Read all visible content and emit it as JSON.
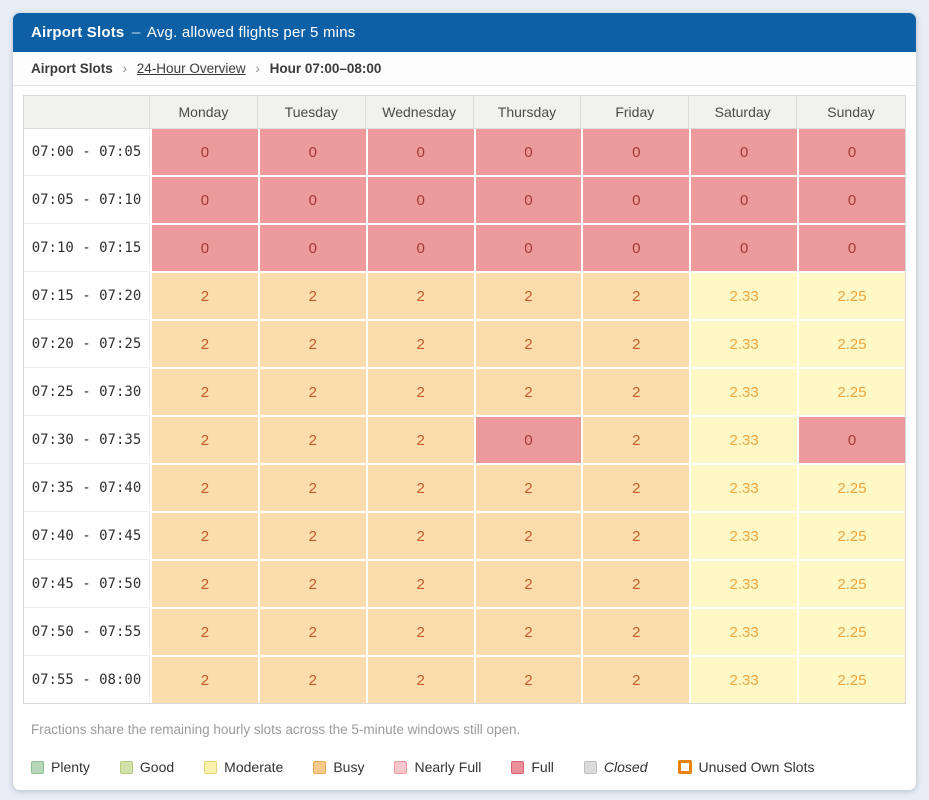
{
  "colors": {
    "header_bar": "#0d5fa6",
    "page_bg": "#e9eef6"
  },
  "title": {
    "product": "Airport Slots",
    "separator": "–",
    "subtitle": "Avg. allowed flights per 5 mins"
  },
  "breadcrumb": {
    "separator": "›",
    "items": [
      {
        "label": "Airport Slots",
        "link": false
      },
      {
        "label": "24-Hour Overview",
        "link": true
      },
      {
        "label": "Hour 07:00–08:00",
        "link": false
      }
    ]
  },
  "palette": {
    "full": {
      "bg": "#ec9a9b",
      "text": "#a33a36"
    },
    "busy": {
      "bg": "#fbdcac",
      "text": "#c75b2e"
    },
    "moderate": {
      "bg": "#fdf8c6",
      "text": "#eea63f"
    }
  },
  "table": {
    "corner_label": "",
    "day_headers": [
      "Monday",
      "Tuesday",
      "Wednesday",
      "Thursday",
      "Friday",
      "Saturday",
      "Sunday"
    ],
    "rows": [
      {
        "time": "07:00 - 07:05",
        "cells": [
          {
            "value": "0",
            "level": "full"
          },
          {
            "value": "0",
            "level": "full"
          },
          {
            "value": "0",
            "level": "full"
          },
          {
            "value": "0",
            "level": "full"
          },
          {
            "value": "0",
            "level": "full"
          },
          {
            "value": "0",
            "level": "full"
          },
          {
            "value": "0",
            "level": "full"
          }
        ]
      },
      {
        "time": "07:05 - 07:10",
        "cells": [
          {
            "value": "0",
            "level": "full"
          },
          {
            "value": "0",
            "level": "full"
          },
          {
            "value": "0",
            "level": "full"
          },
          {
            "value": "0",
            "level": "full"
          },
          {
            "value": "0",
            "level": "full"
          },
          {
            "value": "0",
            "level": "full"
          },
          {
            "value": "0",
            "level": "full"
          }
        ]
      },
      {
        "time": "07:10 - 07:15",
        "cells": [
          {
            "value": "0",
            "level": "full"
          },
          {
            "value": "0",
            "level": "full"
          },
          {
            "value": "0",
            "level": "full"
          },
          {
            "value": "0",
            "level": "full"
          },
          {
            "value": "0",
            "level": "full"
          },
          {
            "value": "0",
            "level": "full"
          },
          {
            "value": "0",
            "level": "full"
          }
        ]
      },
      {
        "time": "07:15 - 07:20",
        "cells": [
          {
            "value": "2",
            "level": "busy"
          },
          {
            "value": "2",
            "level": "busy"
          },
          {
            "value": "2",
            "level": "busy"
          },
          {
            "value": "2",
            "level": "busy"
          },
          {
            "value": "2",
            "level": "busy"
          },
          {
            "value": "2.33",
            "level": "moderate"
          },
          {
            "value": "2.25",
            "level": "moderate"
          }
        ]
      },
      {
        "time": "07:20 - 07:25",
        "cells": [
          {
            "value": "2",
            "level": "busy"
          },
          {
            "value": "2",
            "level": "busy"
          },
          {
            "value": "2",
            "level": "busy"
          },
          {
            "value": "2",
            "level": "busy"
          },
          {
            "value": "2",
            "level": "busy"
          },
          {
            "value": "2.33",
            "level": "moderate"
          },
          {
            "value": "2.25",
            "level": "moderate"
          }
        ]
      },
      {
        "time": "07:25 - 07:30",
        "cells": [
          {
            "value": "2",
            "level": "busy"
          },
          {
            "value": "2",
            "level": "busy"
          },
          {
            "value": "2",
            "level": "busy"
          },
          {
            "value": "2",
            "level": "busy"
          },
          {
            "value": "2",
            "level": "busy"
          },
          {
            "value": "2.33",
            "level": "moderate"
          },
          {
            "value": "2.25",
            "level": "moderate"
          }
        ]
      },
      {
        "time": "07:30 - 07:35",
        "cells": [
          {
            "value": "2",
            "level": "busy"
          },
          {
            "value": "2",
            "level": "busy"
          },
          {
            "value": "2",
            "level": "busy"
          },
          {
            "value": "0",
            "level": "full"
          },
          {
            "value": "2",
            "level": "busy"
          },
          {
            "value": "2.33",
            "level": "moderate"
          },
          {
            "value": "0",
            "level": "full"
          }
        ]
      },
      {
        "time": "07:35 - 07:40",
        "cells": [
          {
            "value": "2",
            "level": "busy"
          },
          {
            "value": "2",
            "level": "busy"
          },
          {
            "value": "2",
            "level": "busy"
          },
          {
            "value": "2",
            "level": "busy"
          },
          {
            "value": "2",
            "level": "busy"
          },
          {
            "value": "2.33",
            "level": "moderate"
          },
          {
            "value": "2.25",
            "level": "moderate"
          }
        ]
      },
      {
        "time": "07:40 - 07:45",
        "cells": [
          {
            "value": "2",
            "level": "busy"
          },
          {
            "value": "2",
            "level": "busy"
          },
          {
            "value": "2",
            "level": "busy"
          },
          {
            "value": "2",
            "level": "busy"
          },
          {
            "value": "2",
            "level": "busy"
          },
          {
            "value": "2.33",
            "level": "moderate"
          },
          {
            "value": "2.25",
            "level": "moderate"
          }
        ]
      },
      {
        "time": "07:45 - 07:50",
        "cells": [
          {
            "value": "2",
            "level": "busy"
          },
          {
            "value": "2",
            "level": "busy"
          },
          {
            "value": "2",
            "level": "busy"
          },
          {
            "value": "2",
            "level": "busy"
          },
          {
            "value": "2",
            "level": "busy"
          },
          {
            "value": "2.33",
            "level": "moderate"
          },
          {
            "value": "2.25",
            "level": "moderate"
          }
        ]
      },
      {
        "time": "07:50 - 07:55",
        "cells": [
          {
            "value": "2",
            "level": "busy"
          },
          {
            "value": "2",
            "level": "busy"
          },
          {
            "value": "2",
            "level": "busy"
          },
          {
            "value": "2",
            "level": "busy"
          },
          {
            "value": "2",
            "level": "busy"
          },
          {
            "value": "2.33",
            "level": "moderate"
          },
          {
            "value": "2.25",
            "level": "moderate"
          }
        ]
      },
      {
        "time": "07:55 - 08:00",
        "cells": [
          {
            "value": "2",
            "level": "busy"
          },
          {
            "value": "2",
            "level": "busy"
          },
          {
            "value": "2",
            "level": "busy"
          },
          {
            "value": "2",
            "level": "busy"
          },
          {
            "value": "2",
            "level": "busy"
          },
          {
            "value": "2.33",
            "level": "moderate"
          },
          {
            "value": "2.25",
            "level": "moderate"
          }
        ]
      }
    ]
  },
  "footnote": "Fractions share the remaining hourly slots across the 5-minute windows still open.",
  "legend": {
    "items": [
      {
        "label": "Plenty",
        "fill": "#b7d7b8",
        "border": "#90be93"
      },
      {
        "label": "Good",
        "fill": "#d3e2aa",
        "border": "#b5cd80"
      },
      {
        "label": "Moderate",
        "fill": "#faf3ad",
        "border": "#e3d57a"
      },
      {
        "label": "Busy",
        "fill": "#f6ca8d",
        "border": "#e9aa58"
      },
      {
        "label": "Nearly Full",
        "fill": "#f9c7cb",
        "border": "#f09aa2"
      },
      {
        "label": "Full",
        "fill": "#e9909a",
        "border": "#da626f"
      },
      {
        "label": "Closed",
        "fill": "#dbdbdb",
        "border": "#bfbfbf",
        "italic": true
      },
      {
        "label": "Unused Own Slots",
        "fill": "#ffffff",
        "border": "#e8820c",
        "thick": true
      }
    ]
  }
}
